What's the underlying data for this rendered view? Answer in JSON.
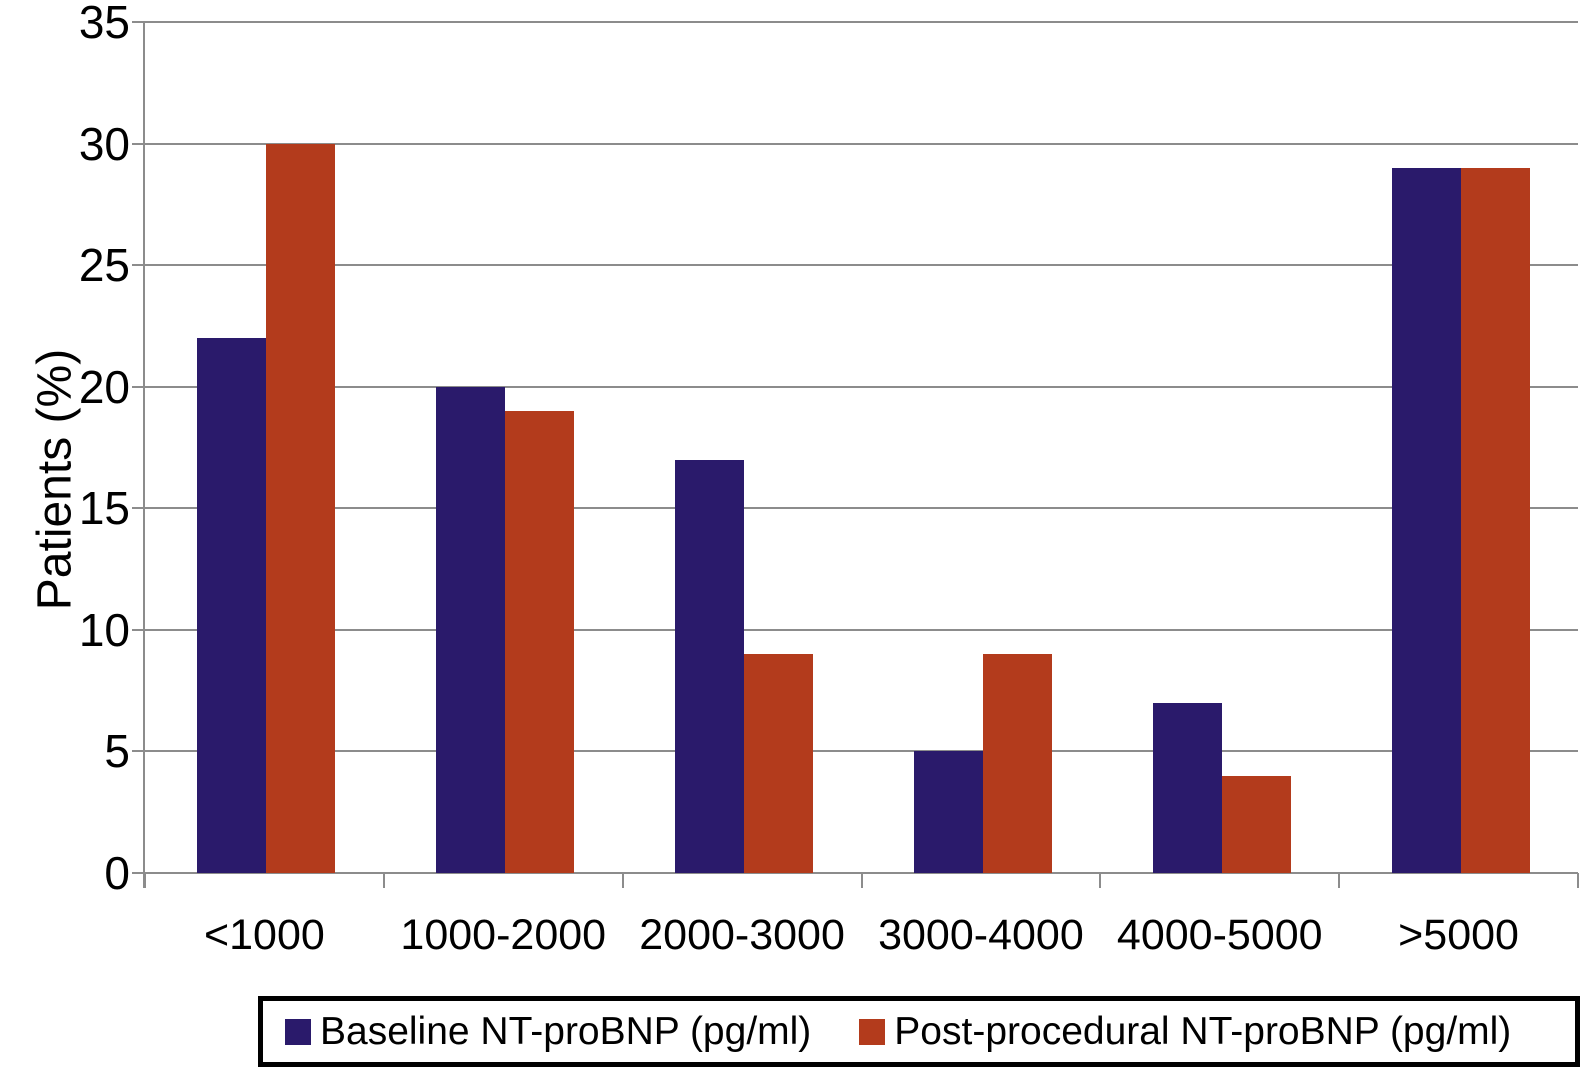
{
  "chart_data": {
    "type": "bar",
    "title": "",
    "xlabel": "",
    "ylabel": "Patients (%)",
    "categories": [
      "<1000",
      "1000-2000",
      "2000-3000",
      "3000-4000",
      "4000-5000",
      ">5000"
    ],
    "series": [
      {
        "name": "Baseline NT-proBNP (pg/ml)",
        "color": "#2a1a6b",
        "values": [
          22,
          20,
          17,
          5,
          7,
          29
        ]
      },
      {
        "name": "Post-procedural NT-proBNP (pg/ml)",
        "color": "#b33b1c",
        "values": [
          30,
          19,
          9,
          9,
          4,
          29
        ]
      }
    ],
    "ylim": [
      0,
      35
    ],
    "yticks": [
      0,
      5,
      10,
      15,
      20,
      25,
      30,
      35
    ],
    "grid": true,
    "legend_position": "bottom"
  },
  "colors": {
    "gridline": "#8c8c8c",
    "axis": "#8c8c8c",
    "text": "#000000",
    "background": "#ffffff",
    "legend_border": "#000000"
  }
}
